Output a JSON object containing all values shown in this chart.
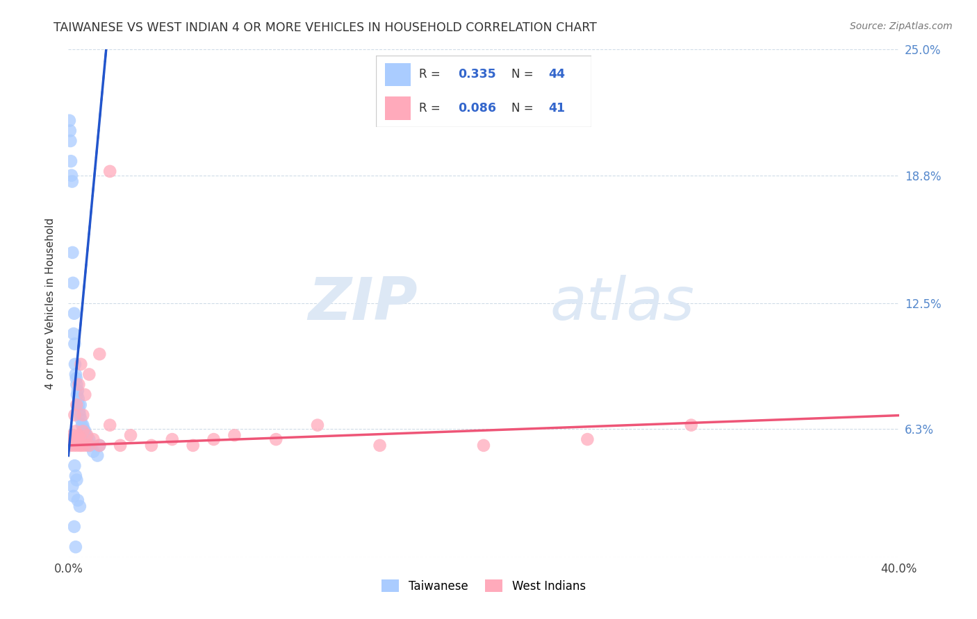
{
  "title": "TAIWANESE VS WEST INDIAN 4 OR MORE VEHICLES IN HOUSEHOLD CORRELATION CHART",
  "source": "Source: ZipAtlas.com",
  "ylabel": "4 or more Vehicles in Household",
  "xlim": [
    0.0,
    40.0
  ],
  "ylim": [
    0.0,
    25.0
  ],
  "xticks": [
    0.0,
    10.0,
    20.0,
    30.0,
    40.0
  ],
  "yticks": [
    0.0,
    6.3,
    12.5,
    18.8,
    25.0
  ],
  "ytick_labels": [
    "",
    "6.3%",
    "12.5%",
    "18.8%",
    "25.0%"
  ],
  "xtick_labels": [
    "0.0%",
    "",
    "",
    "",
    "40.0%"
  ],
  "legend_labels": [
    "Taiwanese",
    "West Indians"
  ],
  "r_taiwanese": 0.335,
  "n_taiwanese": 44,
  "r_west_indian": 0.086,
  "n_west_indian": 41,
  "taiwanese_color": "#aaccff",
  "west_indian_color": "#ffaabb",
  "trendline_taiwanese_color": "#2255cc",
  "trendline_west_indian_color": "#ee5577",
  "watermark_zip": "ZIP",
  "watermark_atlas": "atlas",
  "watermark_color": "#dde8f5",
  "taiwanese_x": [
    0.05,
    0.08,
    0.1,
    0.12,
    0.15,
    0.18,
    0.2,
    0.22,
    0.25,
    0.28,
    0.3,
    0.32,
    0.35,
    0.38,
    0.4,
    0.42,
    0.45,
    0.48,
    0.5,
    0.52,
    0.55,
    0.58,
    0.6,
    0.65,
    0.7,
    0.75,
    0.8,
    0.85,
    0.9,
    0.95,
    1.0,
    1.1,
    1.2,
    1.4,
    1.5,
    0.3,
    0.35,
    0.4,
    0.2,
    0.25,
    0.45,
    0.55,
    0.28,
    0.35
  ],
  "taiwanese_y": [
    21.5,
    21.0,
    20.5,
    19.5,
    18.8,
    18.5,
    15.0,
    13.5,
    11.0,
    12.0,
    10.5,
    9.5,
    9.0,
    8.8,
    8.5,
    8.0,
    8.2,
    7.8,
    7.5,
    7.2,
    7.0,
    7.5,
    6.8,
    6.5,
    6.5,
    6.3,
    6.2,
    6.0,
    5.8,
    5.5,
    5.8,
    5.5,
    5.2,
    5.0,
    5.5,
    4.5,
    4.0,
    3.8,
    3.5,
    3.0,
    2.8,
    2.5,
    1.5,
    0.5
  ],
  "west_indian_x": [
    0.1,
    0.15,
    0.2,
    0.25,
    0.3,
    0.35,
    0.4,
    0.45,
    0.5,
    0.55,
    0.6,
    0.65,
    0.7,
    0.8,
    0.9,
    1.0,
    1.2,
    1.5,
    2.0,
    2.5,
    3.0,
    4.0,
    5.0,
    6.0,
    7.0,
    8.0,
    10.0,
    12.0,
    15.0,
    20.0,
    25.0,
    30.0,
    0.3,
    0.4,
    0.5,
    0.6,
    0.7,
    0.8,
    1.0,
    1.5,
    2.0
  ],
  "west_indian_y": [
    5.5,
    5.8,
    6.0,
    5.5,
    5.8,
    6.2,
    5.5,
    5.8,
    6.0,
    5.5,
    5.8,
    5.5,
    6.2,
    5.5,
    6.0,
    5.5,
    5.8,
    5.5,
    6.5,
    5.5,
    6.0,
    5.5,
    5.8,
    5.5,
    5.8,
    6.0,
    5.8,
    6.5,
    5.5,
    5.5,
    5.8,
    6.5,
    7.0,
    7.5,
    8.5,
    9.5,
    7.0,
    8.0,
    9.0,
    10.0,
    19.0
  ]
}
